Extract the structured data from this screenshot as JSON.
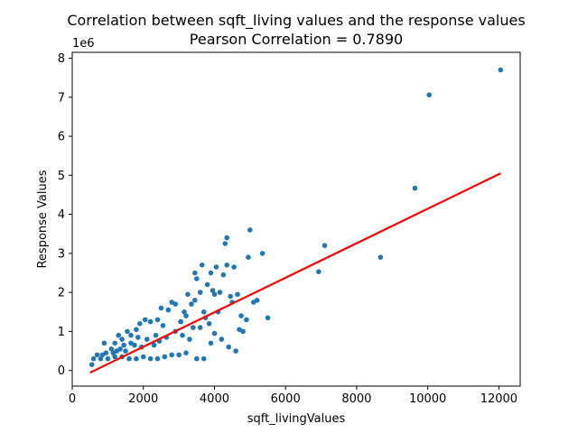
{
  "chart_data": {
    "type": "scatter",
    "title": "Correlation between sqft_living values and the response values",
    "subtitle": "Pearson Correlation = 0.7890",
    "xlabel": "sqft_livingValues",
    "ylabel": "Response Values",
    "y_offset_label": "1e6",
    "xlim": [
      0,
      12600
    ],
    "ylim": [
      -400000,
      8150000
    ],
    "x_ticks": [
      0,
      2000,
      4000,
      6000,
      8000,
      10000,
      12000
    ],
    "x_tick_labels": [
      "0",
      "2000",
      "4000",
      "6000",
      "8000",
      "10000",
      "12000"
    ],
    "y_ticks": [
      0,
      1000000,
      2000000,
      3000000,
      4000000,
      5000000,
      6000000,
      7000000,
      8000000
    ],
    "y_tick_labels": [
      "0",
      "1",
      "2",
      "3",
      "4",
      "5",
      "6",
      "7",
      "8"
    ],
    "grid": false,
    "colors": {
      "points": "#1f77b4",
      "fit_line": "#ff0000"
    },
    "series": [
      {
        "values_note": "",
        "points": [
          [
            12050,
            7700000
          ],
          [
            10040,
            7060000
          ],
          [
            9640,
            4670000
          ],
          [
            8670,
            2900000
          ],
          [
            7100,
            3200000
          ],
          [
            6930,
            2530000
          ],
          [
            5500,
            1350000
          ],
          [
            5350,
            3000000
          ],
          [
            5000,
            3600000
          ],
          [
            5200,
            1800000
          ],
          [
            5100,
            1750000
          ],
          [
            4950,
            2900000
          ],
          [
            4750,
            1400000
          ],
          [
            4650,
            1950000
          ],
          [
            4550,
            2650000
          ],
          [
            4450,
            1900000
          ],
          [
            4350,
            3400000
          ],
          [
            4300,
            3250000
          ],
          [
            4350,
            2700000
          ],
          [
            4250,
            2450000
          ],
          [
            4150,
            2000000
          ],
          [
            4050,
            2650000
          ],
          [
            4000,
            1950000
          ],
          [
            3900,
            2500000
          ],
          [
            3850,
            1200000
          ],
          [
            3800,
            2200000
          ],
          [
            3700,
            1500000
          ],
          [
            3600,
            2000000
          ],
          [
            3500,
            2350000
          ],
          [
            3450,
            2500000
          ],
          [
            3450,
            1800000
          ],
          [
            3350,
            1700000
          ],
          [
            3200,
            1400000
          ],
          [
            3150,
            1500000
          ],
          [
            2900,
            1700000
          ],
          [
            2800,
            1750000
          ],
          [
            2700,
            1550000
          ],
          [
            2500,
            1600000
          ],
          [
            2400,
            1300000
          ],
          [
            2200,
            1250000
          ],
          [
            2050,
            1300000
          ],
          [
            1900,
            1200000
          ],
          [
            1800,
            1050000
          ],
          [
            1650,
            900000
          ],
          [
            1550,
            1000000
          ],
          [
            1400,
            800000
          ],
          [
            1300,
            900000
          ],
          [
            1200,
            700000
          ],
          [
            1100,
            550000
          ],
          [
            950,
            450000
          ],
          [
            900,
            700000
          ],
          [
            800,
            300000
          ],
          [
            700,
            400000
          ],
          [
            600,
            300000
          ],
          [
            550,
            150000
          ],
          [
            1000,
            300000
          ],
          [
            1200,
            350000
          ],
          [
            1400,
            350000
          ],
          [
            1600,
            300000
          ],
          [
            1800,
            300000
          ],
          [
            2000,
            350000
          ],
          [
            2200,
            300000
          ],
          [
            2400,
            300000
          ],
          [
            2600,
            350000
          ],
          [
            2800,
            400000
          ],
          [
            3000,
            400000
          ],
          [
            3200,
            450000
          ],
          [
            3500,
            300000
          ],
          [
            3700,
            300000
          ],
          [
            3900,
            700000
          ],
          [
            4200,
            800000
          ],
          [
            4400,
            600000
          ],
          [
            4600,
            500000
          ],
          [
            4800,
            1000000
          ],
          [
            4900,
            1300000
          ],
          [
            4000,
            950000
          ],
          [
            3600,
            1100000
          ],
          [
            3300,
            800000
          ],
          [
            3100,
            900000
          ],
          [
            2900,
            1000000
          ],
          [
            2650,
            850000
          ],
          [
            2450,
            750000
          ],
          [
            2300,
            650000
          ],
          [
            2100,
            800000
          ],
          [
            1950,
            600000
          ],
          [
            1750,
            650000
          ],
          [
            1500,
            500000
          ],
          [
            1350,
            550000
          ],
          [
            1150,
            450000
          ],
          [
            850,
            400000
          ],
          [
            2550,
            1150000
          ],
          [
            3050,
            1250000
          ],
          [
            3400,
            1100000
          ],
          [
            3750,
            1350000
          ],
          [
            4100,
            1500000
          ],
          [
            2350,
            900000
          ],
          [
            1850,
            850000
          ],
          [
            1650,
            700000
          ],
          [
            1450,
            650000
          ],
          [
            1250,
            500000
          ],
          [
            3950,
            2050000
          ],
          [
            3650,
            2700000
          ],
          [
            4500,
            1750000
          ],
          [
            4700,
            1050000
          ],
          [
            3250,
            1950000
          ]
        ]
      }
    ],
    "fit_line": {
      "x": [
        500,
        12050
      ],
      "y": [
        -55000,
        5050000
      ]
    }
  }
}
